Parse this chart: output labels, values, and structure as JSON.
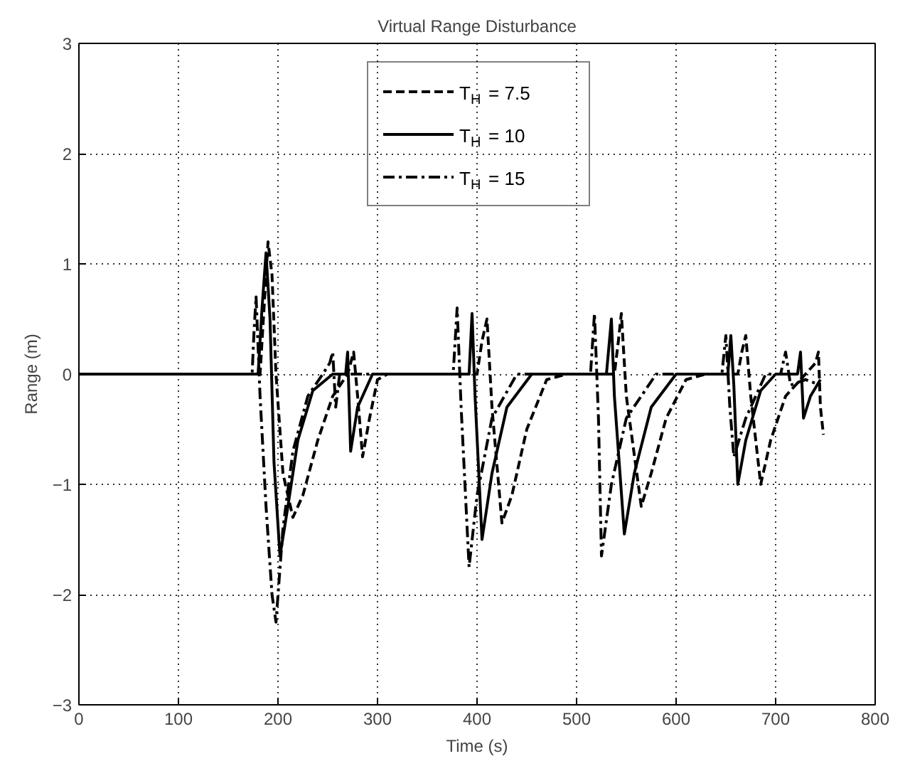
{
  "chart_data": {
    "type": "line",
    "title": "Virtual Range Disturbance",
    "xlabel": "Time (s)",
    "ylabel": "Range (m)",
    "xlim": [
      0,
      800
    ],
    "ylim": [
      -3,
      3
    ],
    "xticks": [
      0,
      100,
      200,
      300,
      400,
      500,
      600,
      700,
      800
    ],
    "yticks": [
      -3,
      -2,
      -1,
      0,
      1,
      2,
      3
    ],
    "grid": true,
    "legend": "top",
    "marker": "none",
    "series": [
      {
        "name": "T$_{H}$ = 7.5",
        "color": "#000000",
        "line_style": "dashed",
        "x": [
          0,
          182,
          186,
          190,
          194,
          198,
          205,
          215,
          225,
          240,
          255,
          270,
          276,
          280,
          285,
          292,
          300,
          310,
          400,
          405,
          410,
          415,
          425,
          435,
          450,
          470,
          490,
          538,
          542,
          545,
          550,
          565,
          575,
          590,
          610,
          630,
          662,
          666,
          670,
          675,
          685,
          695,
          710,
          730,
          740,
          743,
          745,
          748
        ],
        "values": [
          0,
          0,
          0.6,
          1.2,
          0.9,
          0,
          -0.9,
          -1.3,
          -1.1,
          -0.6,
          -0.2,
          0,
          0.2,
          -0.2,
          -0.75,
          -0.4,
          -0.05,
          0,
          0,
          0.3,
          0.5,
          -0.3,
          -1.35,
          -1.1,
          -0.5,
          -0.05,
          0,
          0,
          0.3,
          0.55,
          -0.2,
          -1.2,
          -0.9,
          -0.4,
          -0.05,
          0,
          0,
          0.2,
          0.35,
          -0.2,
          -1.0,
          -0.6,
          -0.2,
          0,
          0.1,
          0.2,
          -0.3,
          -0.55
        ]
      },
      {
        "name": "T$_{H}$ = 10",
        "color": "#000000",
        "line_style": "solid",
        "x": [
          0,
          180,
          184,
          188,
          192,
          196,
          202,
          210,
          220,
          235,
          255,
          268,
          270,
          273,
          280,
          295,
          392,
          395,
          398,
          405,
          415,
          430,
          455,
          530,
          535,
          538,
          548,
          558,
          575,
          600,
          652,
          655,
          658,
          662,
          670,
          685,
          700,
          722,
          725,
          728,
          735,
          745
        ],
        "values": [
          0,
          0,
          0.6,
          1.1,
          0.5,
          -0.8,
          -1.65,
          -1.2,
          -0.6,
          -0.15,
          0,
          0,
          0.2,
          -0.7,
          -0.3,
          0,
          0,
          0.55,
          -0.2,
          -1.5,
          -0.9,
          -0.3,
          0,
          0,
          0.5,
          -0.2,
          -1.45,
          -0.9,
          -0.3,
          0,
          0,
          0.35,
          -0.1,
          -1.0,
          -0.6,
          -0.15,
          0,
          0,
          0.2,
          -0.4,
          -0.2,
          -0.05
        ]
      },
      {
        "name": "T$_{H}$ = 15",
        "color": "#000000",
        "line_style": "dashdot",
        "x": [
          0,
          174,
          176,
          178,
          182,
          188,
          194,
          198,
          205,
          215,
          230,
          245,
          252,
          255,
          258,
          262,
          270,
          376,
          380,
          384,
          392,
          400,
          415,
          440,
          514,
          518,
          522,
          525,
          535,
          550,
          580,
          646,
          650,
          654,
          658,
          670,
          690,
          705,
          710,
          715,
          730,
          745
        ],
        "values": [
          0,
          0,
          0.4,
          0.7,
          -0.2,
          -1.2,
          -2.0,
          -2.25,
          -1.4,
          -0.7,
          -0.2,
          0,
          0.1,
          0.2,
          -0.3,
          0,
          0,
          0,
          0.6,
          -0.3,
          -1.75,
          -1.1,
          -0.4,
          0,
          0,
          0.55,
          -0.4,
          -1.65,
          -1.0,
          -0.4,
          0,
          0,
          0.35,
          -0.3,
          -0.75,
          -0.4,
          0,
          0,
          0.2,
          -0.1,
          -0.05,
          -0.1
        ]
      }
    ]
  }
}
